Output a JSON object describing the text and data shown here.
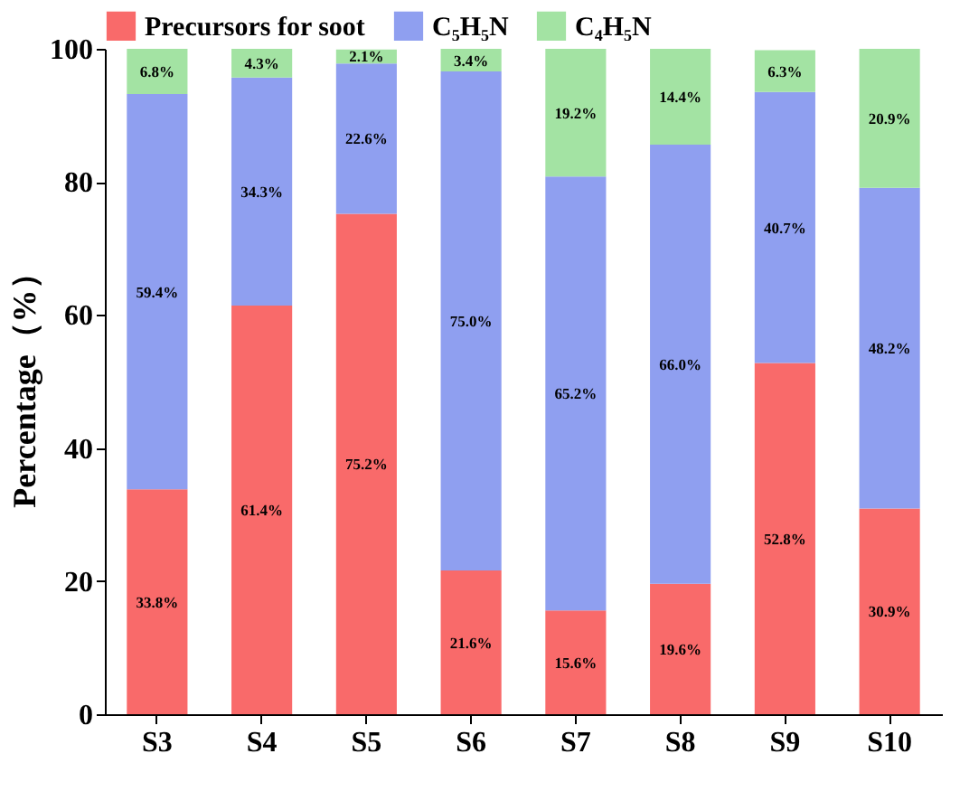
{
  "chart_data": {
    "type": "bar",
    "stacked": true,
    "ylabel": "Percentage（%）",
    "categories": [
      "S3",
      "S4",
      "S5",
      "S6",
      "S7",
      "S8",
      "S9",
      "S10"
    ],
    "series": [
      {
        "name": "Precursors for soot",
        "color": "#f96a6a",
        "values": [
          33.8,
          61.4,
          75.2,
          21.6,
          15.6,
          19.6,
          52.8,
          30.9
        ],
        "value_labels": [
          "33.8%",
          "61.4%",
          "75.2%",
          "21.6%",
          "15.6%",
          "19.6%",
          "52.8%",
          "30.9%"
        ]
      },
      {
        "name": "C₅H₅N",
        "color": "#8f9ff0",
        "values": [
          59.4,
          34.3,
          22.6,
          75.0,
          65.2,
          66.0,
          40.7,
          48.2
        ],
        "value_labels": [
          "59.4%",
          "34.3%",
          "22.6%",
          "75.0%",
          "65.2%",
          "66.0%",
          "40.7%",
          "48.2%"
        ]
      },
      {
        "name": "C₄H₅N",
        "color": "#a3e3a3",
        "values": [
          6.8,
          4.3,
          2.1,
          3.4,
          19.2,
          14.4,
          6.3,
          20.9
        ],
        "value_labels": [
          "6.8%",
          "4.3%",
          "2.1%",
          "3.4%",
          "19.2%",
          "14.4%",
          "6.3%",
          "20.9%"
        ]
      }
    ],
    "ylim": [
      0,
      100
    ],
    "yticks": [
      0,
      20,
      40,
      60,
      80,
      100
    ],
    "grid": false,
    "legend": "top"
  }
}
